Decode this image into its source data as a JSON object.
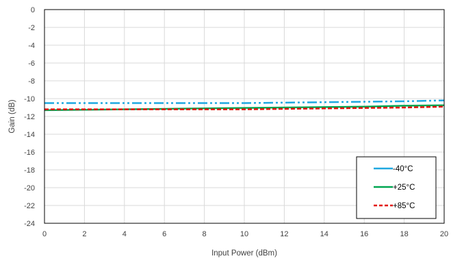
{
  "chart_data": {
    "type": "line",
    "title": "",
    "xlabel": "Input Power (dBm)",
    "ylabel": "Gain (dB)",
    "xlim": [
      0,
      20
    ],
    "ylim": [
      -24,
      0
    ],
    "xticks": [
      0,
      2,
      4,
      6,
      8,
      10,
      12,
      14,
      16,
      18,
      20
    ],
    "yticks": [
      0,
      -2,
      -4,
      -6,
      -8,
      -10,
      -12,
      -14,
      -16,
      -18,
      -20,
      -22,
      -24
    ],
    "grid": true,
    "legend_position": "bottom-right",
    "series": [
      {
        "name": "-40°C",
        "color": "#1FA8E0",
        "style": "dash-dot-dot",
        "x": [
          0,
          2,
          4,
          6,
          8,
          10,
          12,
          14,
          16,
          18,
          20
        ],
        "y": [
          -10.5,
          -10.5,
          -10.5,
          -10.5,
          -10.5,
          -10.5,
          -10.45,
          -10.4,
          -10.35,
          -10.3,
          -10.2
        ]
      },
      {
        "name": "+25°C",
        "color": "#00A651",
        "style": "solid",
        "x": [
          0,
          2,
          4,
          6,
          8,
          10,
          12,
          14,
          16,
          18,
          20
        ],
        "y": [
          -11.3,
          -11.25,
          -11.2,
          -11.15,
          -11.1,
          -11.05,
          -11.0,
          -10.95,
          -10.9,
          -10.8,
          -10.75
        ]
      },
      {
        "name": "+85°C",
        "color": "#E3120B",
        "style": "dash",
        "x": [
          0,
          2,
          4,
          6,
          8,
          10,
          12,
          14,
          16,
          18,
          20
        ],
        "y": [
          -11.2,
          -11.2,
          -11.2,
          -11.2,
          -11.2,
          -11.2,
          -11.15,
          -11.1,
          -11.05,
          -11.0,
          -10.9
        ]
      }
    ]
  }
}
